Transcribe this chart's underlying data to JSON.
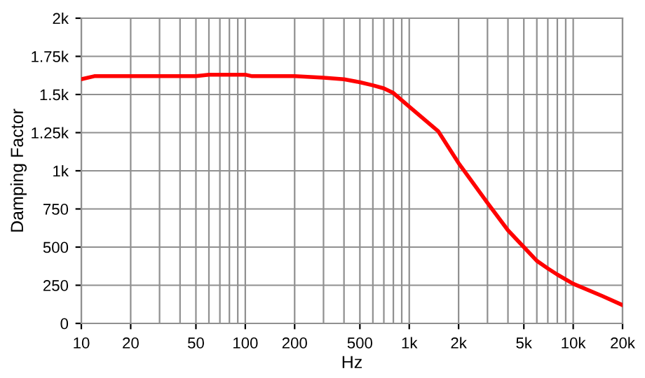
{
  "chart_data": {
    "type": "line",
    "xlabel": "Hz",
    "ylabel": "Damping Factor",
    "x": [
      10,
      12,
      20,
      50,
      60,
      100,
      110,
      200,
      300,
      400,
      500,
      600,
      700,
      800,
      1000,
      1500,
      2000,
      3000,
      4000,
      5000,
      6000,
      7000,
      8000,
      10000,
      15000,
      20000
    ],
    "series": [
      {
        "color": "#ff0000",
        "values": [
          1600,
          1620,
          1620,
          1620,
          1630,
          1630,
          1620,
          1620,
          1610,
          1600,
          1580,
          1560,
          1540,
          1510,
          1420,
          1260,
          1050,
          790,
          610,
          500,
          410,
          360,
          320,
          260,
          180,
          120
        ]
      }
    ],
    "log": "x",
    "xlim": [
      10,
      20000
    ],
    "ylim": [
      0,
      2000
    ],
    "xticks": [
      10,
      20,
      50,
      100,
      200,
      500,
      {
        "value": 1000,
        "label": "1k"
      },
      {
        "value": 2000,
        "label": "2k"
      },
      {
        "value": 5000,
        "label": "5k"
      },
      {
        "value": 10000,
        "label": "10k"
      },
      {
        "value": 20000,
        "label": "20k"
      }
    ],
    "yticks": [
      0,
      250,
      500,
      750,
      {
        "value": 1000,
        "label": "1k"
      },
      {
        "value": 1250,
        "label": "1.25k"
      },
      {
        "value": 1500,
        "label": "1.5k"
      },
      {
        "value": 1750,
        "label": "1.75k"
      },
      {
        "value": 2000,
        "label": "2k"
      }
    ],
    "grid": true,
    "marker": "none",
    "line_style": "solid"
  }
}
